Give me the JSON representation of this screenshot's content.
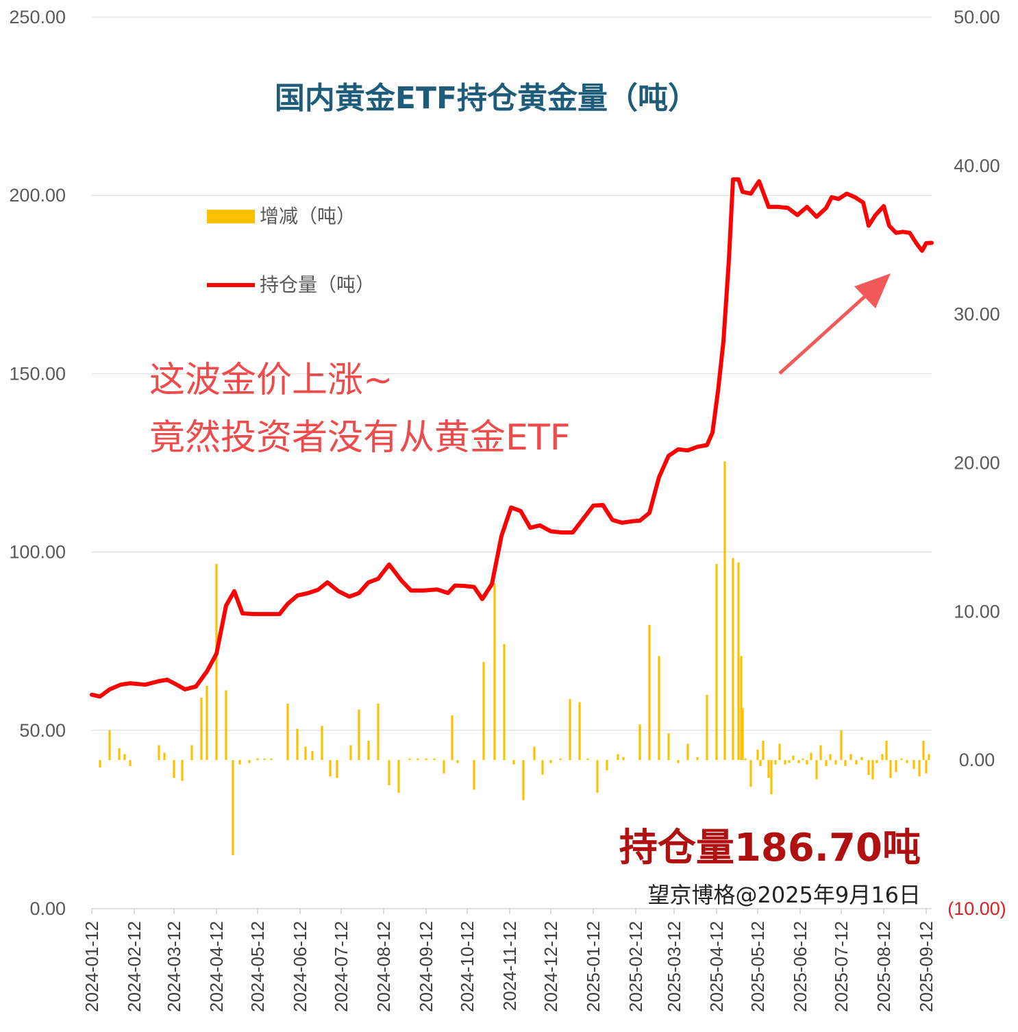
{
  "chart_data": {
    "type": "bar+line",
    "title": "国内黄金ETF持仓黄金量（吨）",
    "left_axis": {
      "min": 0,
      "max": 250,
      "ticks": [
        "0.00",
        "50.00",
        "100.00",
        "150.00",
        "200.00",
        "250.00"
      ]
    },
    "right_axis": {
      "min": -10,
      "max": 50,
      "ticks": [
        "(10.00)",
        "0.00",
        "10.00",
        "20.00",
        "30.00",
        "40.00",
        "50.00"
      ]
    },
    "x_range": [
      "2024-01-12",
      "2025-09-16"
    ],
    "x_ticks": [
      "2024-01-12",
      "2024-02-12",
      "2024-03-12",
      "2024-04-12",
      "2024-05-12",
      "2024-06-12",
      "2024-07-12",
      "2024-08-12",
      "2024-09-12",
      "2024-10-12",
      "2024-11-12",
      "2024-12-12",
      "2025-01-12",
      "2025-02-12",
      "2025-03-12",
      "2025-04-12",
      "2025-05-12",
      "2025-06-12",
      "2025-07-12",
      "2025-08-12",
      "2025-09-12"
    ],
    "grid": "horizontal",
    "legend_position": "top-left",
    "series": [
      {
        "name": "增减（吨）",
        "type": "bar",
        "axis": "right",
        "color": "#ffc000",
        "points": [
          [
            "2024-01-18",
            -0.5
          ],
          [
            "2024-01-25",
            2.0
          ],
          [
            "2024-02-01",
            0.8
          ],
          [
            "2024-02-05",
            0.4
          ],
          [
            "2024-02-09",
            -0.4
          ],
          [
            "2024-03-01",
            1.0
          ],
          [
            "2024-03-05",
            0.5
          ],
          [
            "2024-03-12",
            -1.2
          ],
          [
            "2024-03-18",
            -1.4
          ],
          [
            "2024-03-25",
            1.0
          ],
          [
            "2024-04-01",
            4.2
          ],
          [
            "2024-04-05",
            5.0
          ],
          [
            "2024-04-12",
            13.2
          ],
          [
            "2024-04-19",
            4.7
          ],
          [
            "2024-04-24",
            -6.4
          ],
          [
            "2024-04-29",
            -0.3
          ],
          [
            "2024-05-06",
            -0.2
          ],
          [
            "2024-05-12",
            0.1
          ],
          [
            "2024-05-17",
            0.1
          ],
          [
            "2024-05-22",
            0.1
          ],
          [
            "2024-06-03",
            3.8
          ],
          [
            "2024-06-10",
            2.1
          ],
          [
            "2024-06-16",
            0.9
          ],
          [
            "2024-06-21",
            0.6
          ],
          [
            "2024-06-28",
            2.3
          ],
          [
            "2024-07-04",
            -1.1
          ],
          [
            "2024-07-09",
            -1.2
          ],
          [
            "2024-07-19",
            1.0
          ],
          [
            "2024-07-25",
            3.4
          ],
          [
            "2024-08-01",
            1.3
          ],
          [
            "2024-08-08",
            3.8
          ],
          [
            "2024-08-16",
            -1.7
          ],
          [
            "2024-08-23",
            -2.2
          ],
          [
            "2024-08-31",
            0.1
          ],
          [
            "2024-09-06",
            0.1
          ],
          [
            "2024-09-12",
            0.1
          ],
          [
            "2024-09-18",
            0.1
          ],
          [
            "2024-09-25",
            -0.9
          ],
          [
            "2024-10-01",
            3.0
          ],
          [
            "2024-10-05",
            -0.2
          ],
          [
            "2024-10-17",
            -2.0
          ],
          [
            "2024-10-24",
            6.6
          ],
          [
            "2024-11-01",
            11.9
          ],
          [
            "2024-11-08",
            7.8
          ],
          [
            "2024-11-15",
            -0.3
          ],
          [
            "2024-11-22",
            -2.7
          ],
          [
            "2024-11-30",
            0.9
          ],
          [
            "2024-12-06",
            -1.0
          ],
          [
            "2024-12-12",
            -0.2
          ],
          [
            "2024-12-19",
            0.1
          ],
          [
            "2024-12-26",
            4.1
          ],
          [
            "2025-01-02",
            3.9
          ],
          [
            "2025-01-08",
            0.1
          ],
          [
            "2025-01-15",
            -2.2
          ],
          [
            "2025-01-22",
            -0.7
          ],
          [
            "2025-01-30",
            0.4
          ],
          [
            "2025-02-03",
            0.2
          ],
          [
            "2025-02-15",
            2.4
          ],
          [
            "2025-02-22",
            9.1
          ],
          [
            "2025-03-01",
            7.0
          ],
          [
            "2025-03-08",
            1.8
          ],
          [
            "2025-03-15",
            -0.2
          ],
          [
            "2025-03-22",
            1.1
          ],
          [
            "2025-03-29",
            0.2
          ],
          [
            "2025-04-05",
            4.4
          ],
          [
            "2025-04-12",
            13.2
          ],
          [
            "2025-04-18",
            20.1
          ],
          [
            "2025-04-24",
            13.6
          ],
          [
            "2025-04-28",
            13.3
          ],
          [
            "2025-04-30",
            7.0
          ],
          [
            "2025-05-01",
            3.5
          ],
          [
            "2025-05-03",
            0.1
          ],
          [
            "2025-05-07",
            -1.8
          ],
          [
            "2025-05-12",
            0.7
          ],
          [
            "2025-05-14",
            -0.4
          ],
          [
            "2025-05-16",
            1.3
          ],
          [
            "2025-05-20",
            -1.2
          ],
          [
            "2025-05-22",
            -2.3
          ],
          [
            "2025-05-25",
            -0.3
          ],
          [
            "2025-05-28",
            1.1
          ],
          [
            "2025-06-01",
            -0.3
          ],
          [
            "2025-06-04",
            -0.2
          ],
          [
            "2025-06-07",
            0.3
          ],
          [
            "2025-06-11",
            -0.2
          ],
          [
            "2025-06-14",
            0.1
          ],
          [
            "2025-06-17",
            -0.3
          ],
          [
            "2025-06-20",
            0.5
          ],
          [
            "2025-06-24",
            -1.3
          ],
          [
            "2025-06-27",
            1.0
          ],
          [
            "2025-07-01",
            -0.4
          ],
          [
            "2025-07-04",
            0.4
          ],
          [
            "2025-07-08",
            -0.3
          ],
          [
            "2025-07-12",
            2.0
          ],
          [
            "2025-07-15",
            -0.4
          ],
          [
            "2025-07-19",
            0.4
          ],
          [
            "2025-07-23",
            -0.3
          ],
          [
            "2025-07-27",
            0.2
          ],
          [
            "2025-08-01",
            -1.0
          ],
          [
            "2025-08-04",
            -1.3
          ],
          [
            "2025-08-07",
            -0.2
          ],
          [
            "2025-08-11",
            0.4
          ],
          [
            "2025-08-14",
            1.3
          ],
          [
            "2025-08-17",
            -1.2
          ],
          [
            "2025-08-21",
            -0.8
          ],
          [
            "2025-08-25",
            0.1
          ],
          [
            "2025-08-29",
            -0.2
          ],
          [
            "2025-09-03",
            -0.6
          ],
          [
            "2025-09-07",
            -1.1
          ],
          [
            "2025-09-10",
            1.3
          ],
          [
            "2025-09-12",
            -0.9
          ],
          [
            "2025-09-14",
            0.4
          ]
        ]
      },
      {
        "name": "持仓量（吨）",
        "type": "line",
        "axis": "left",
        "color": "#ff0000",
        "points": [
          [
            "2024-01-12",
            60.0
          ],
          [
            "2024-01-18",
            59.5
          ],
          [
            "2024-01-25",
            61.5
          ],
          [
            "2024-02-02",
            62.8
          ],
          [
            "2024-02-09",
            63.2
          ],
          [
            "2024-02-20",
            62.8
          ],
          [
            "2024-03-01",
            63.8
          ],
          [
            "2024-03-07",
            64.2
          ],
          [
            "2024-03-14",
            62.8
          ],
          [
            "2024-03-20",
            61.5
          ],
          [
            "2024-03-28",
            62.3
          ],
          [
            "2024-04-05",
            66.5
          ],
          [
            "2024-04-12",
            71.5
          ],
          [
            "2024-04-19",
            85.0
          ],
          [
            "2024-04-25",
            89.0
          ],
          [
            "2024-05-01",
            82.8
          ],
          [
            "2024-05-10",
            82.6
          ],
          [
            "2024-05-20",
            82.6
          ],
          [
            "2024-05-28",
            82.6
          ],
          [
            "2024-06-03",
            85.5
          ],
          [
            "2024-06-10",
            87.8
          ],
          [
            "2024-06-18",
            88.5
          ],
          [
            "2024-06-25",
            89.4
          ],
          [
            "2024-07-02",
            91.5
          ],
          [
            "2024-07-10",
            89.0
          ],
          [
            "2024-07-18",
            87.5
          ],
          [
            "2024-07-25",
            88.5
          ],
          [
            "2024-08-01",
            91.5
          ],
          [
            "2024-08-08",
            92.5
          ],
          [
            "2024-08-16",
            96.5
          ],
          [
            "2024-08-25",
            92.0
          ],
          [
            "2024-09-01",
            89.2
          ],
          [
            "2024-09-10",
            89.2
          ],
          [
            "2024-09-20",
            89.5
          ],
          [
            "2024-09-28",
            88.5
          ],
          [
            "2024-10-03",
            90.6
          ],
          [
            "2024-10-10",
            90.5
          ],
          [
            "2024-10-17",
            90.2
          ],
          [
            "2024-10-23",
            86.8
          ],
          [
            "2024-10-30",
            91.0
          ],
          [
            "2024-11-06",
            104.5
          ],
          [
            "2024-11-13",
            112.5
          ],
          [
            "2024-11-20",
            111.5
          ],
          [
            "2024-11-27",
            106.8
          ],
          [
            "2024-12-04",
            107.5
          ],
          [
            "2024-12-12",
            105.8
          ],
          [
            "2024-12-20",
            105.5
          ],
          [
            "2024-12-28",
            105.5
          ],
          [
            "2025-01-05",
            109.5
          ],
          [
            "2025-01-12",
            113.0
          ],
          [
            "2025-01-19",
            113.2
          ],
          [
            "2025-01-26",
            109.0
          ],
          [
            "2025-02-02",
            108.2
          ],
          [
            "2025-02-09",
            108.6
          ],
          [
            "2025-02-15",
            108.8
          ],
          [
            "2025-02-22",
            111.0
          ],
          [
            "2025-03-01",
            121.0
          ],
          [
            "2025-03-08",
            127.0
          ],
          [
            "2025-03-15",
            128.8
          ],
          [
            "2025-03-22",
            128.5
          ],
          [
            "2025-03-29",
            129.5
          ],
          [
            "2025-04-05",
            130.0
          ],
          [
            "2025-04-09",
            133.5
          ],
          [
            "2025-04-13",
            145.0
          ],
          [
            "2025-04-17",
            159.0
          ],
          [
            "2025-04-21",
            182.0
          ],
          [
            "2025-04-24",
            204.5
          ],
          [
            "2025-04-28",
            204.5
          ],
          [
            "2025-05-01",
            201.0
          ],
          [
            "2025-05-07",
            200.5
          ],
          [
            "2025-05-13",
            204.0
          ],
          [
            "2025-05-20",
            196.8
          ],
          [
            "2025-05-27",
            196.8
          ],
          [
            "2025-06-03",
            196.5
          ],
          [
            "2025-06-10",
            194.5
          ],
          [
            "2025-06-17",
            196.8
          ],
          [
            "2025-06-24",
            194.0
          ],
          [
            "2025-07-01",
            196.5
          ],
          [
            "2025-07-05",
            199.5
          ],
          [
            "2025-07-10",
            199.0
          ],
          [
            "2025-07-16",
            200.5
          ],
          [
            "2025-07-22",
            199.5
          ],
          [
            "2025-07-28",
            198.0
          ],
          [
            "2025-08-01",
            191.5
          ],
          [
            "2025-08-06",
            194.5
          ],
          [
            "2025-08-12",
            197.0
          ],
          [
            "2025-08-16",
            191.5
          ],
          [
            "2025-08-21",
            189.5
          ],
          [
            "2025-08-26",
            189.8
          ],
          [
            "2025-08-31",
            189.5
          ],
          [
            "2025-09-05",
            186.5
          ],
          [
            "2025-09-09",
            184.5
          ],
          [
            "2025-09-12",
            186.6
          ],
          [
            "2025-09-16",
            186.7
          ]
        ]
      }
    ],
    "annotations": [
      "这波金价上涨~",
      "竟然投资者没有从黄金ETF"
    ],
    "summary": "持仓量186.70吨",
    "source": "望京博格@2025年9月16日"
  },
  "colors": {
    "title": "#1f5c7a",
    "bar": "#ffc000",
    "line": "#ff0000",
    "annotation": "#ef4b4b",
    "arrow": "#f25a5a",
    "summary": "#b01010",
    "grid": "#d9d9d9",
    "negative_tick": "#e02020"
  }
}
